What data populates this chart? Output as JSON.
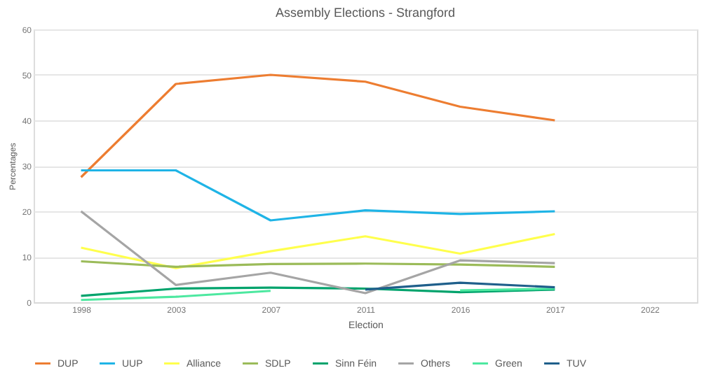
{
  "chart_data": {
    "type": "line",
    "title": "Assembly Elections - Strangford",
    "xlabel": "Election",
    "ylabel": "Percentages",
    "categories": [
      "1998",
      "2003",
      "2007",
      "2011",
      "2016",
      "2017",
      "2022"
    ],
    "series": [
      {
        "name": "DUP",
        "color": "#ed7d31",
        "values": [
          27.5,
          48,
          50,
          48.5,
          43,
          40,
          null
        ]
      },
      {
        "name": "UUP",
        "color": "#1fb4e6",
        "values": [
          29,
          29,
          18,
          20.2,
          19.4,
          20,
          null
        ]
      },
      {
        "name": "Alliance",
        "color": "#ffff4d",
        "values": [
          12,
          7.5,
          11.2,
          14.5,
          10.7,
          15,
          null
        ]
      },
      {
        "name": "SDLP",
        "color": "#9bbb59",
        "values": [
          9,
          7.8,
          8.4,
          8.5,
          8.3,
          7.8,
          null
        ]
      },
      {
        "name": "Sinn Féin",
        "color": "#00a36c",
        "values": [
          1.4,
          3,
          3.2,
          3,
          2.2,
          2.8,
          null
        ]
      },
      {
        "name": "Others",
        "color": "#a5a5a5",
        "values": [
          20,
          3.8,
          6.5,
          2,
          9.2,
          8.6,
          null
        ]
      },
      {
        "name": "Green",
        "color": "#4de8a0",
        "values": [
          0.5,
          1.2,
          2.5,
          null,
          2.6,
          3,
          null
        ]
      },
      {
        "name": "TUV",
        "color": "#1f5f8b",
        "values": [
          null,
          null,
          null,
          2.8,
          4.3,
          3.3,
          null
        ]
      }
    ],
    "ylim": [
      0,
      60
    ],
    "yticks": [
      0,
      10,
      20,
      30,
      40,
      50,
      60
    ],
    "grid": "y",
    "legend": "bottom",
    "marker": "none",
    "line_style": "solid"
  }
}
